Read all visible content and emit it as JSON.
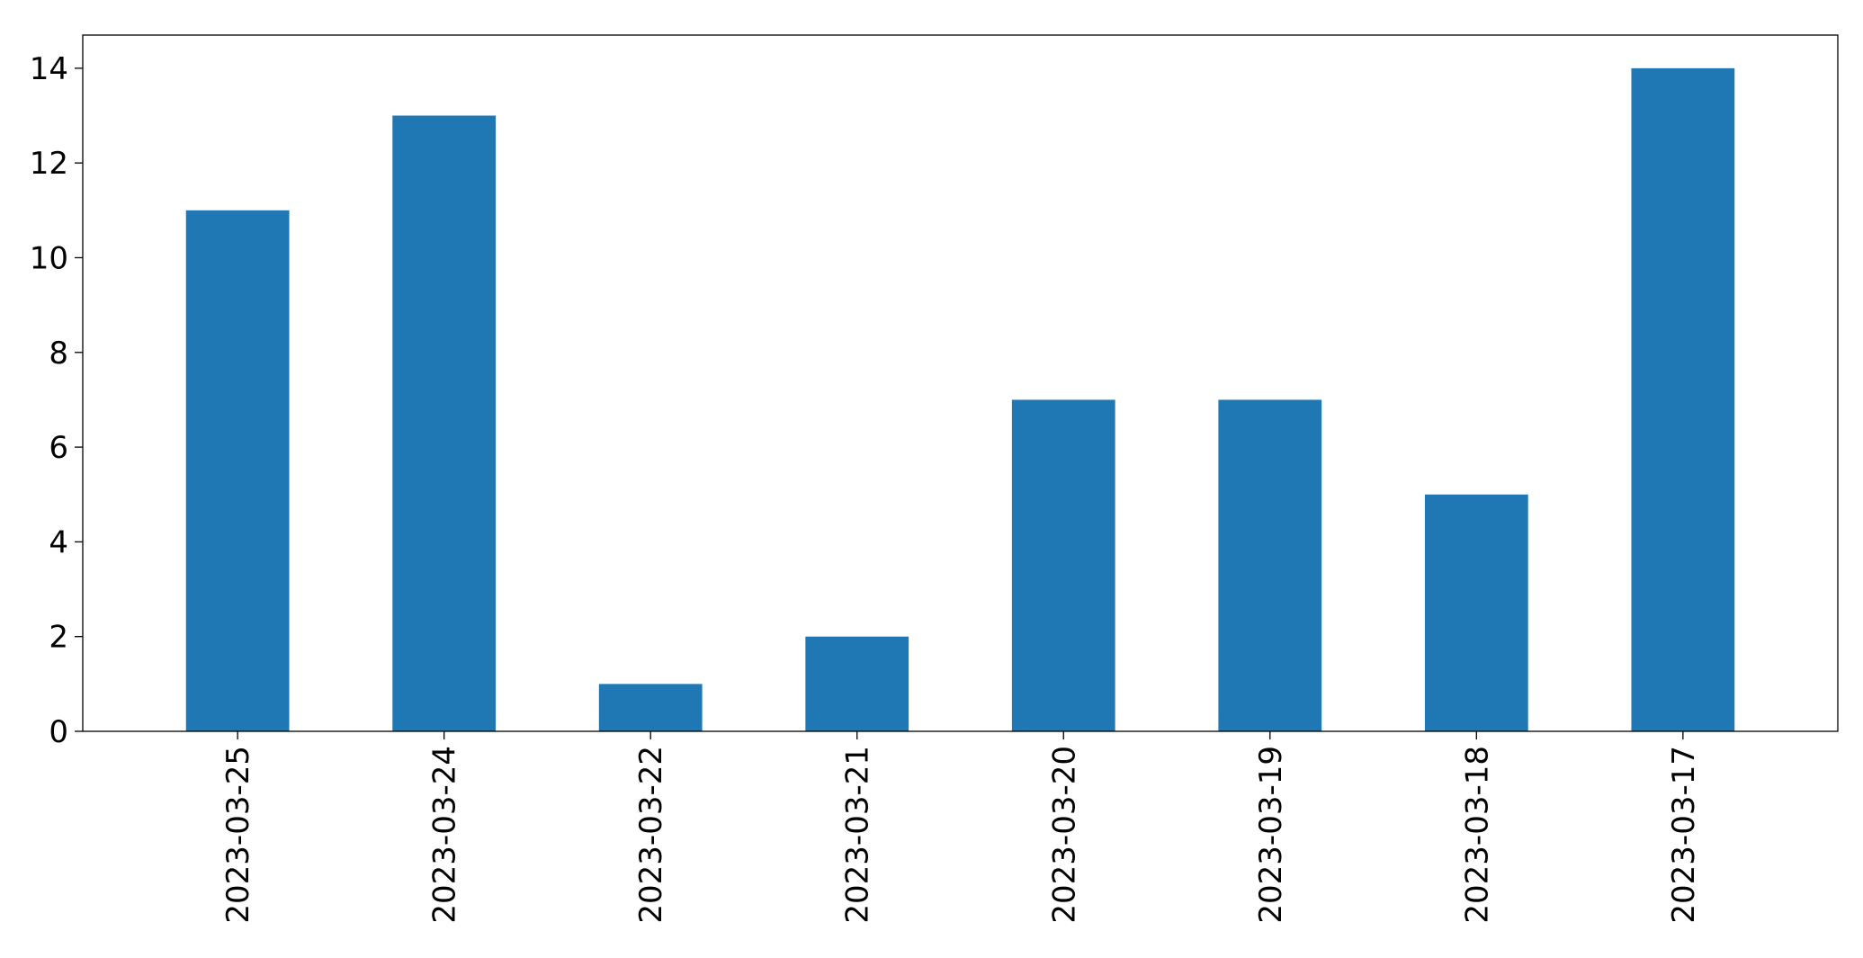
{
  "chart_data": {
    "type": "bar",
    "categories": [
      "2023-03-25",
      "2023-03-24",
      "2023-03-22",
      "2023-03-21",
      "2023-03-20",
      "2023-03-19",
      "2023-03-18",
      "2023-03-17"
    ],
    "values": [
      11,
      13,
      1,
      2,
      7,
      7,
      5,
      14
    ],
    "title": "",
    "xlabel": "",
    "ylabel": "",
    "ylim": [
      0,
      14.7
    ],
    "yticks": [
      "0",
      "2",
      "4",
      "6",
      "8",
      "10",
      "12",
      "14"
    ],
    "bar_color": "#1f77b4",
    "grid": false,
    "x_tick_rotation": "vertical"
  }
}
